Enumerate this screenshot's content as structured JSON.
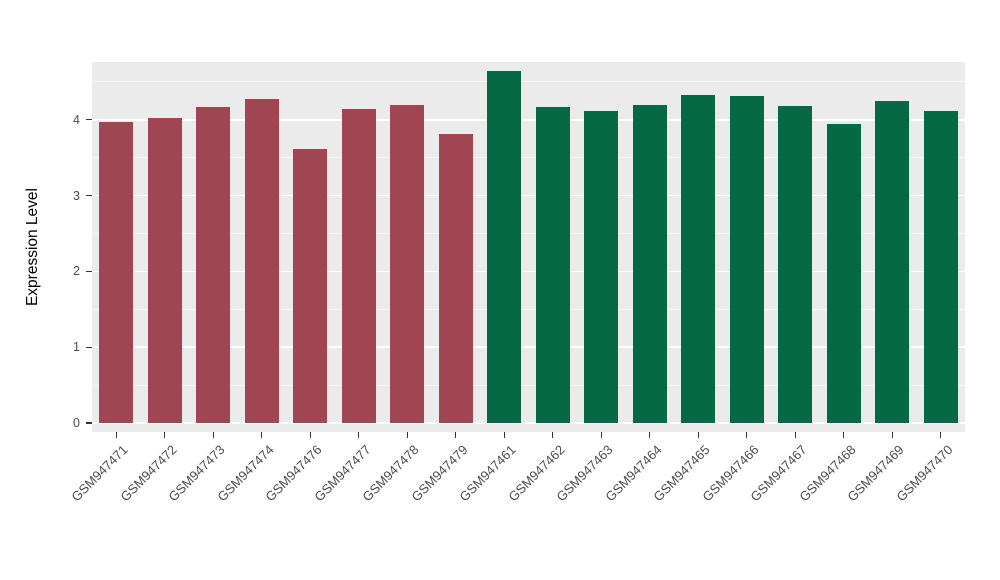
{
  "chart_data": {
    "type": "bar",
    "title": "",
    "xlabel": "",
    "ylabel": "Expression Level",
    "ylim": [
      0,
      4.8
    ],
    "yticks": [
      0,
      1,
      2,
      3,
      4
    ],
    "grid": "on",
    "legend_position": "none",
    "categories": [
      "GSM947471",
      "GSM947472",
      "GSM947473",
      "GSM947474",
      "GSM947476",
      "GSM947477",
      "GSM947478",
      "GSM947479",
      "GSM947461",
      "GSM947462",
      "GSM947463",
      "GSM947464",
      "GSM947465",
      "GSM947466",
      "GSM947467",
      "GSM947468",
      "GSM947469",
      "GSM947470"
    ],
    "values": [
      3.97,
      4.02,
      4.17,
      4.28,
      3.62,
      4.14,
      4.2,
      3.81,
      4.65,
      4.17,
      4.12,
      4.19,
      4.33,
      4.31,
      4.18,
      3.95,
      4.25,
      4.12
    ],
    "bar_colors": [
      "#A04552",
      "#A04552",
      "#A04552",
      "#A04552",
      "#A04552",
      "#A04552",
      "#A04552",
      "#A04552",
      "#066946",
      "#066946",
      "#066946",
      "#066946",
      "#066946",
      "#066946",
      "#066946",
      "#066946",
      "#066946",
      "#066946"
    ],
    "group_colors": {
      "group1": "#A04552",
      "group2": "#066946"
    },
    "panel_background": "#EBEBEB"
  }
}
